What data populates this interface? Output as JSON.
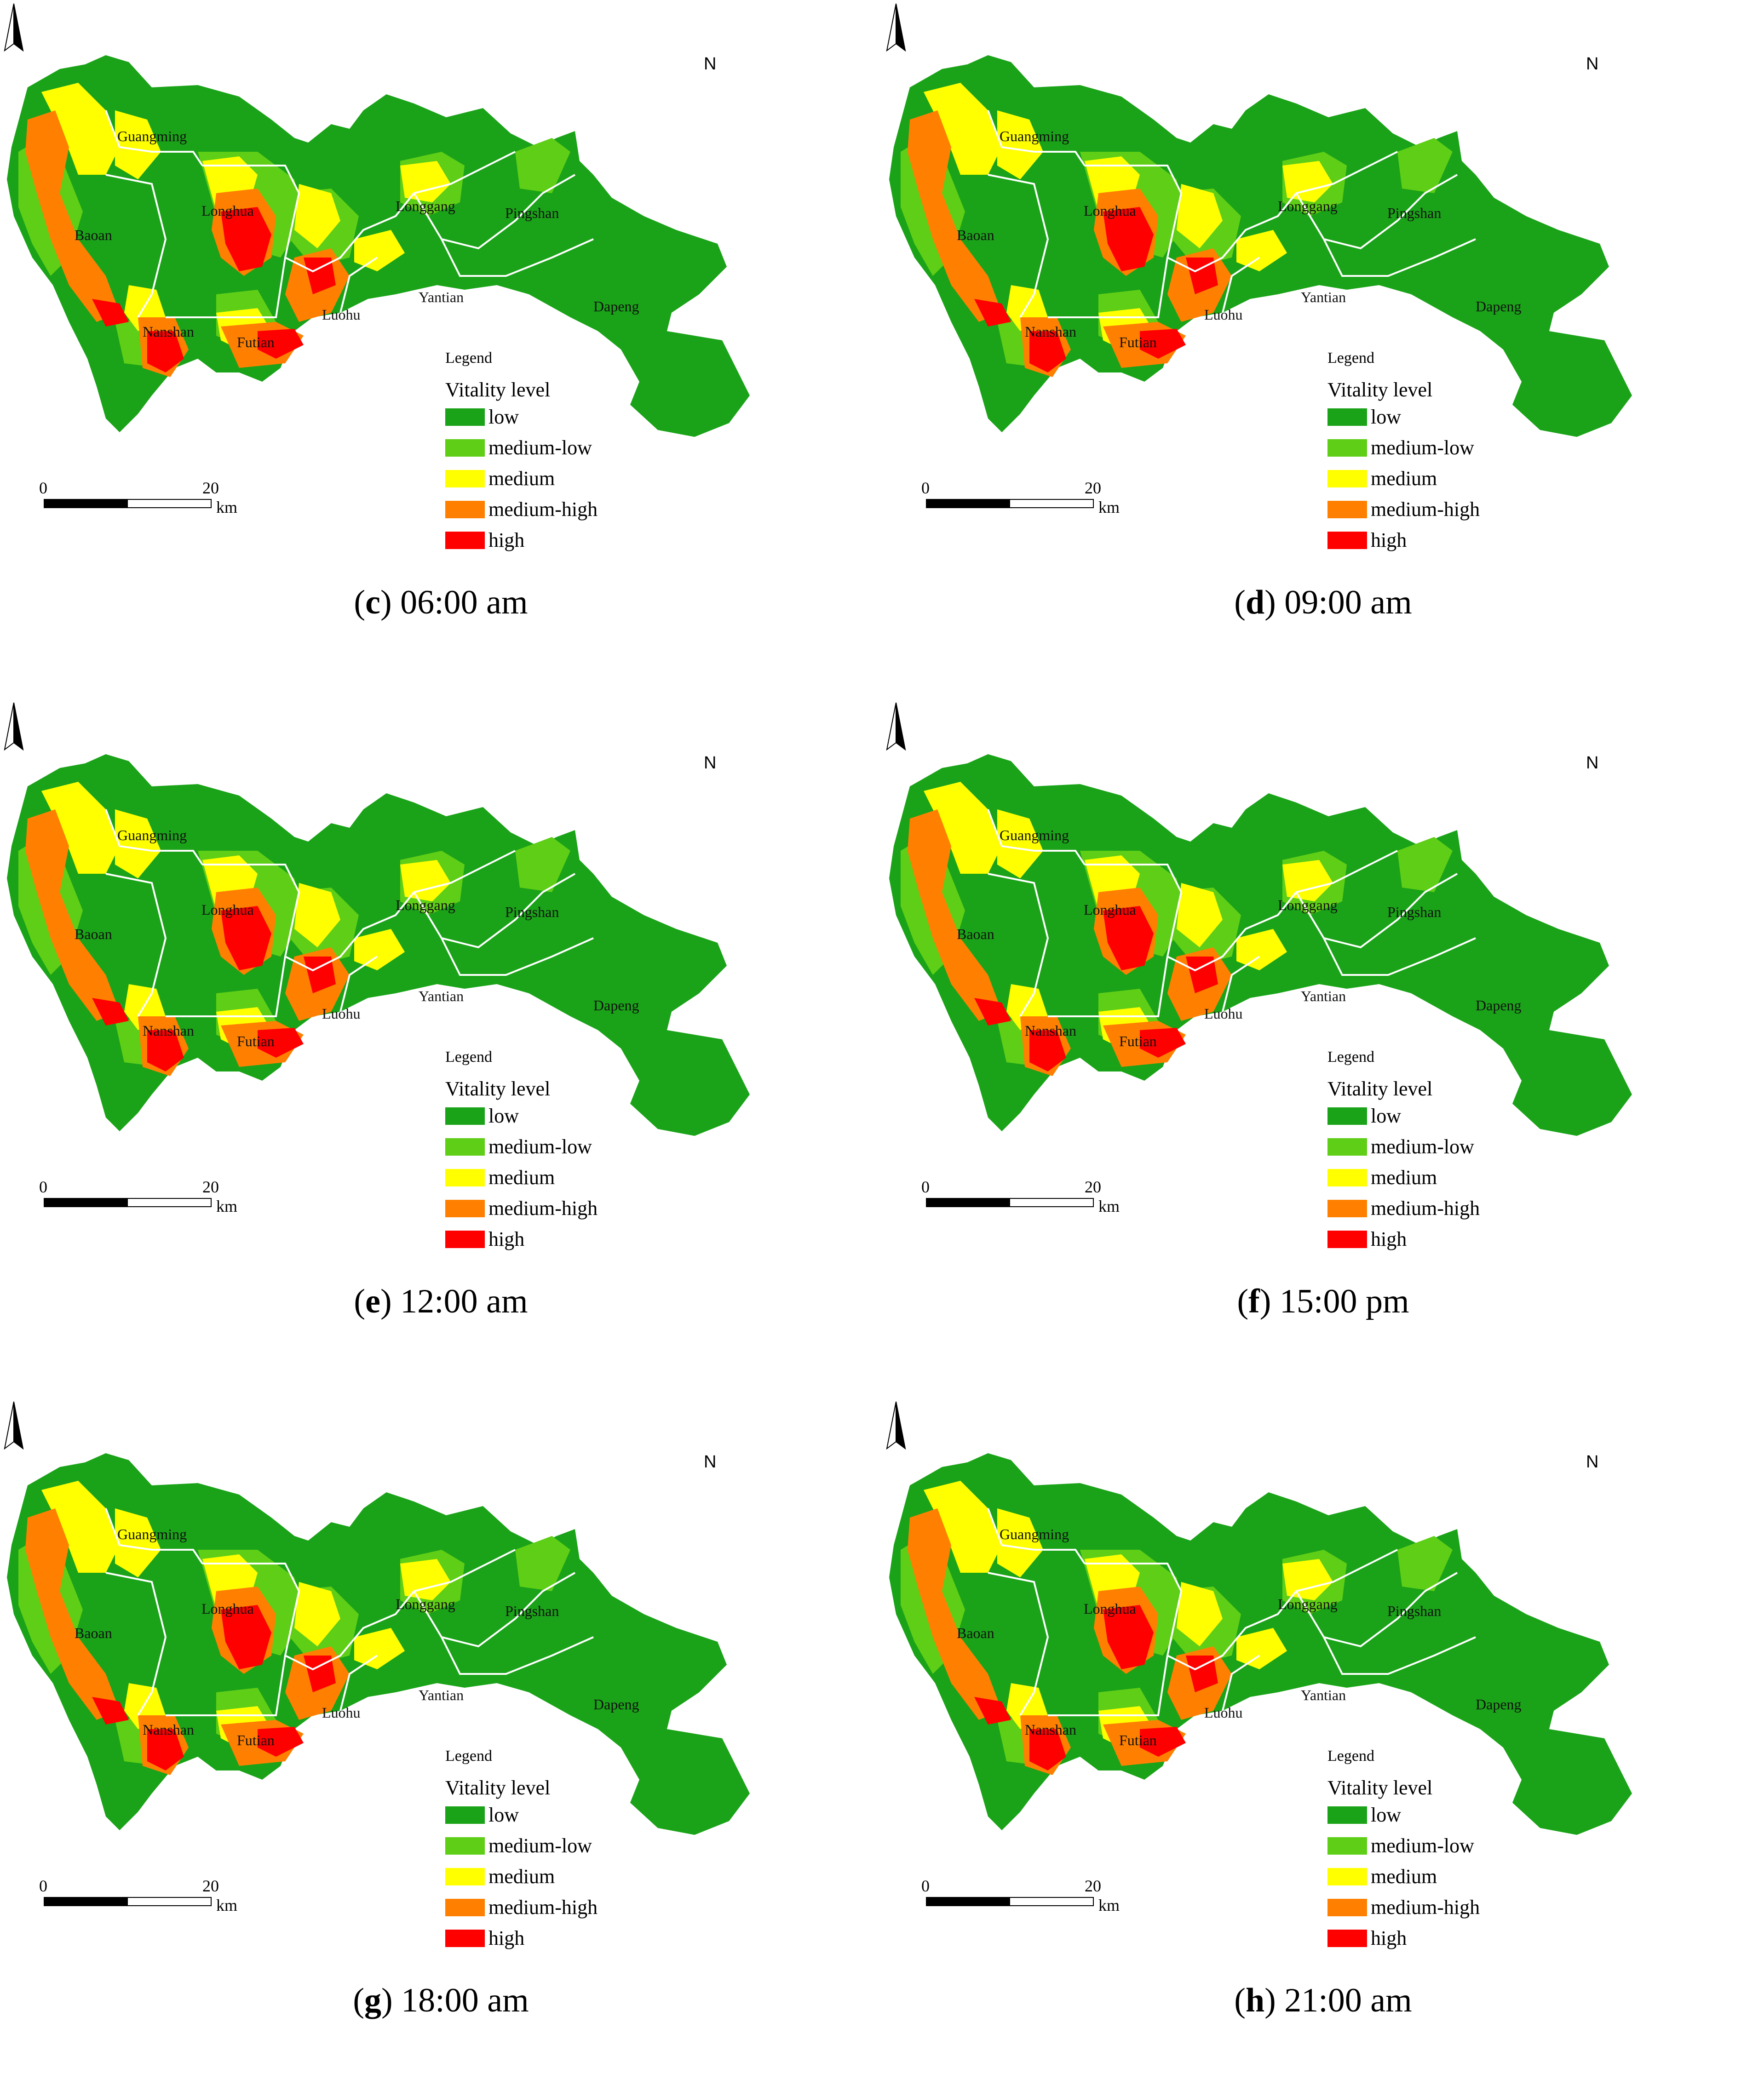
{
  "colors": {
    "low": "#1aa318",
    "medium_low": "#5fce16",
    "medium": "#ffff00",
    "medium_high": "#ff8000",
    "high": "#ff0000",
    "boundary": "#ffffff"
  },
  "map_common": {
    "districts": [
      "Guangming",
      "Longhua",
      "Baoan",
      "Longgang",
      "Pingshan",
      "Yantian",
      "Dapeng",
      "Luohu",
      "Nanshan",
      "Futian"
    ],
    "north_letter": "N",
    "scale": {
      "start": "0",
      "end": "20",
      "unit": "km"
    },
    "legend": {
      "title": "Legend",
      "subtitle": "Vitality level",
      "items": [
        {
          "label": "low",
          "color": "#1aa318"
        },
        {
          "label": "medium-low",
          "color": "#5fce16"
        },
        {
          "label": "medium",
          "color": "#ffff00"
        },
        {
          "label": "medium-high",
          "color": "#ff8000"
        },
        {
          "label": "high",
          "color": "#ff0000"
        }
      ]
    }
  },
  "panels": [
    {
      "letter": "c",
      "time": "06:00 am"
    },
    {
      "letter": "d",
      "time": "09:00 am"
    },
    {
      "letter": "e",
      "time": "12:00 am"
    },
    {
      "letter": "f",
      "time": "15:00 pm"
    },
    {
      "letter": "g",
      "time": "18:00 am"
    },
    {
      "letter": "h",
      "time": "21:00 am"
    }
  ]
}
